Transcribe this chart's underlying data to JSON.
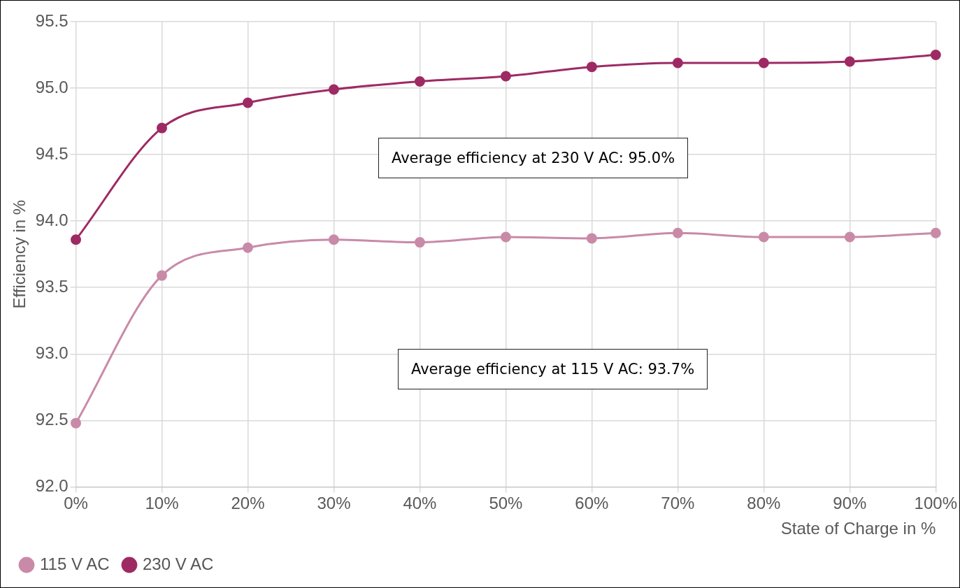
{
  "chart_data": {
    "type": "line",
    "xlabel": "State of Charge in %",
    "ylabel": "Efficiency in %",
    "categories": [
      "0%",
      "10%",
      "20%",
      "30%",
      "40%",
      "50%",
      "60%",
      "70%",
      "80%",
      "90%",
      "100%"
    ],
    "series": [
      {
        "name": "115 V AC",
        "color": "#c98aa8",
        "values": [
          92.48,
          93.59,
          93.8,
          93.86,
          93.84,
          93.88,
          93.87,
          93.91,
          93.88,
          93.88,
          93.91
        ]
      },
      {
        "name": "230 V AC",
        "color": "#9e2a64",
        "values": [
          93.86,
          94.7,
          94.89,
          94.99,
          95.05,
          95.09,
          95.16,
          95.19,
          95.19,
          95.2,
          95.25
        ]
      }
    ],
    "ylim": [
      92,
      95.5
    ],
    "yticks": [
      {
        "value": 92,
        "label": "92.0"
      },
      {
        "value": 92.5,
        "label": "92.5"
      },
      {
        "value": 93,
        "label": "93.0"
      },
      {
        "value": 93.5,
        "label": "93.5"
      },
      {
        "value": 94,
        "label": "94.0"
      },
      {
        "value": 94.5,
        "label": "94.5"
      },
      {
        "value": 95,
        "label": "95.0"
      },
      {
        "value": 95.5,
        "label": "95.5"
      }
    ],
    "grid": true,
    "legend": "bottom left",
    "marker": "circle",
    "line_style": "solid",
    "annotations": [
      "Average efficiency at 230 V AC: 95.0%",
      "Average efficiency at 115 V AC: 93.7%"
    ]
  }
}
